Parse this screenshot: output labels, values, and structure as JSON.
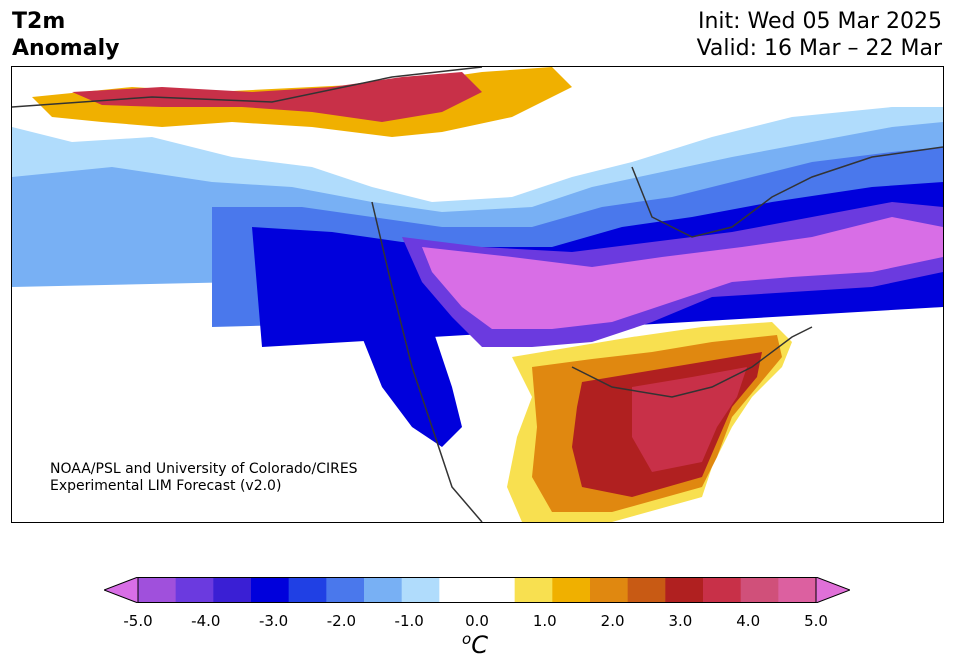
{
  "header": {
    "title_line1": "T2m",
    "title_line2": "Anomaly",
    "init_text": "Init: Wed 05 Mar 2025",
    "valid_text": "Valid: 16 Mar – 22 Mar"
  },
  "credit": {
    "line1": "NOAA/PSL and University of Colorado/CIRES",
    "line2": "Experimental LIM Forecast (v2.0)"
  },
  "colorbar": {
    "ticks": [
      "-5.0",
      "-4.0",
      "-3.0",
      "-2.0",
      "-1.0",
      "0.0",
      "1.0",
      "2.0",
      "3.0",
      "4.0",
      "5.0"
    ],
    "units_sup": "o",
    "units_letter": "C",
    "colors": [
      "#d86ee6",
      "#a050dc",
      "#6b3adf",
      "#3a1fd4",
      "#0000dc",
      "#2040e4",
      "#4a78ec",
      "#78b0f4",
      "#b0dcfc",
      "#ffffff",
      "#ffffff",
      "#f8e050",
      "#f0b000",
      "#e08810",
      "#c85a14",
      "#b02020",
      "#c83048",
      "#d0507a",
      "#dc60a0",
      "#e070d8"
    ]
  },
  "map_colors": {
    "strong_cold": "#0000dc",
    "purple_cold": "#d86ee6",
    "warm_red": "#c83048",
    "yellow": "#f8e050",
    "coast": "#333333"
  }
}
